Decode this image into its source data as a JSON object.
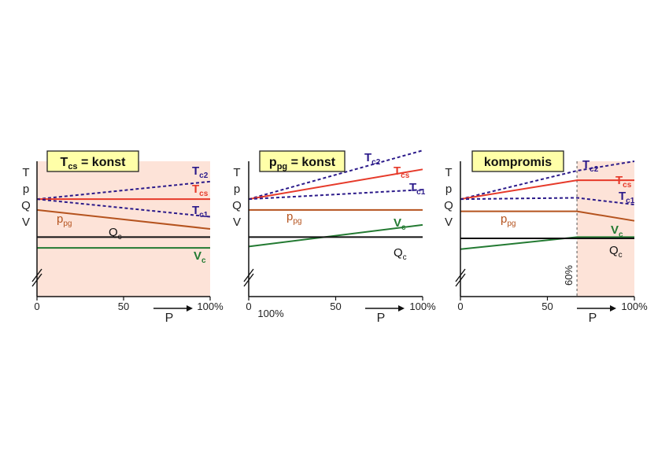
{
  "colors": {
    "shade": "#fde3d8",
    "title_box": "#ffffa8",
    "Tc2": "#2b1a8a",
    "Tcs": "#e63a2a",
    "Tc1": "#2b1a8a",
    "ppg": "#b5531e",
    "Qc": "#111111",
    "Vc": "#237a32"
  },
  "chart_data": [
    {
      "type": "line",
      "title": "Tcs = konst",
      "title_main": "T",
      "title_sub": "cs",
      "title_rest": " = konst",
      "y_letters": [
        "T",
        "p",
        "Q",
        "V"
      ],
      "xlabel": "P",
      "xticks": [
        "0",
        "50",
        "100%"
      ],
      "extra_label": "",
      "xlim": [
        0,
        100
      ],
      "ylim": [
        0,
        10
      ],
      "shade": [
        0,
        100
      ],
      "series": [
        {
          "name": "Tc2",
          "main": "T",
          "sub": "c2",
          "dashed": true,
          "bold": true,
          "x": [
            0,
            100
          ],
          "y": [
            7.2,
            8.5
          ]
        },
        {
          "name": "Tcs",
          "main": "T",
          "sub": "cs",
          "dashed": false,
          "bold": true,
          "x": [
            0,
            100
          ],
          "y": [
            7.2,
            7.2
          ]
        },
        {
          "name": "Tc1",
          "main": "T",
          "sub": "c1",
          "dashed": true,
          "bold": true,
          "x": [
            0,
            100
          ],
          "y": [
            7.2,
            5.9
          ]
        },
        {
          "name": "ppg",
          "main": "p",
          "sub": "pg",
          "dashed": false,
          "bold": false,
          "x": [
            0,
            100
          ],
          "y": [
            6.4,
            5.0
          ]
        },
        {
          "name": "Qc",
          "main": "Q",
          "sub": "c",
          "dashed": false,
          "bold": false,
          "x": [
            0,
            100
          ],
          "y": [
            4.4,
            4.4
          ]
        },
        {
          "name": "Vc",
          "main": "V",
          "sub": "c",
          "dashed": false,
          "bold": true,
          "x": [
            0,
            100
          ],
          "y": [
            3.6,
            3.6
          ]
        }
      ]
    },
    {
      "type": "line",
      "title": "ppg = konst",
      "title_main": "p",
      "title_sub": "pg",
      "title_rest": " = konst",
      "y_letters": [
        "T",
        "p",
        "Q",
        "V"
      ],
      "xlabel": "P",
      "xticks": [
        "0",
        "50",
        "100%"
      ],
      "extra_label": "100%",
      "xlim": [
        0,
        100
      ],
      "ylim": [
        0,
        10
      ],
      "shade": null,
      "series": [
        {
          "name": "Tc2",
          "main": "T",
          "sub": "c2",
          "dashed": true,
          "bold": true,
          "x": [
            0,
            100
          ],
          "y": [
            7.2,
            10.8
          ]
        },
        {
          "name": "Tcs",
          "main": "T",
          "sub": "cs",
          "dashed": false,
          "bold": true,
          "x": [
            0,
            100
          ],
          "y": [
            7.2,
            9.4
          ]
        },
        {
          "name": "Tc1",
          "main": "T",
          "sub": "c1",
          "dashed": true,
          "bold": true,
          "x": [
            0,
            100
          ],
          "y": [
            7.2,
            7.9
          ]
        },
        {
          "name": "ppg",
          "main": "p",
          "sub": "pg",
          "dashed": false,
          "bold": false,
          "x": [
            0,
            100
          ],
          "y": [
            6.4,
            6.4
          ]
        },
        {
          "name": "Vc",
          "main": "V",
          "sub": "c",
          "dashed": false,
          "bold": true,
          "x": [
            0,
            100
          ],
          "y": [
            3.7,
            5.3
          ]
        },
        {
          "name": "Qc",
          "main": "Q",
          "sub": "c",
          "dashed": false,
          "bold": false,
          "x": [
            0,
            100
          ],
          "y": [
            4.4,
            4.4
          ]
        }
      ]
    },
    {
      "type": "line",
      "title": "kompromis",
      "title_main": "kompromis",
      "title_sub": "",
      "title_rest": "",
      "y_letters": [
        "T",
        "p",
        "Q",
        "V"
      ],
      "xlabel": "P",
      "xticks": [
        "0",
        "50",
        "100%"
      ],
      "extra_label": "60%",
      "xlim": [
        0,
        100
      ],
      "ylim": [
        0,
        10
      ],
      "shade": [
        67,
        100
      ],
      "series": [
        {
          "name": "Tc2",
          "main": "T",
          "sub": "c2",
          "dashed": true,
          "bold": true,
          "x": [
            0,
            67,
            100
          ],
          "y": [
            7.2,
            9.3,
            10.0
          ]
        },
        {
          "name": "Tcs",
          "main": "T",
          "sub": "cs",
          "dashed": false,
          "bold": true,
          "x": [
            0,
            67,
            100
          ],
          "y": [
            7.2,
            8.6,
            8.6
          ]
        },
        {
          "name": "Tc1",
          "main": "T",
          "sub": "c1",
          "dashed": true,
          "bold": true,
          "x": [
            0,
            67,
            100
          ],
          "y": [
            7.2,
            7.3,
            6.8
          ]
        },
        {
          "name": "ppg",
          "main": "p",
          "sub": "pg",
          "dashed": false,
          "bold": false,
          "x": [
            0,
            67,
            100
          ],
          "y": [
            6.3,
            6.3,
            5.6
          ]
        },
        {
          "name": "Vc",
          "main": "V",
          "sub": "c",
          "dashed": false,
          "bold": true,
          "x": [
            0,
            67,
            100
          ],
          "y": [
            3.5,
            4.4,
            4.4
          ]
        },
        {
          "name": "Qc",
          "main": "Q",
          "sub": "c",
          "dashed": false,
          "bold": false,
          "x": [
            0,
            67,
            100
          ],
          "y": [
            4.3,
            4.3,
            4.3
          ]
        }
      ]
    }
  ]
}
